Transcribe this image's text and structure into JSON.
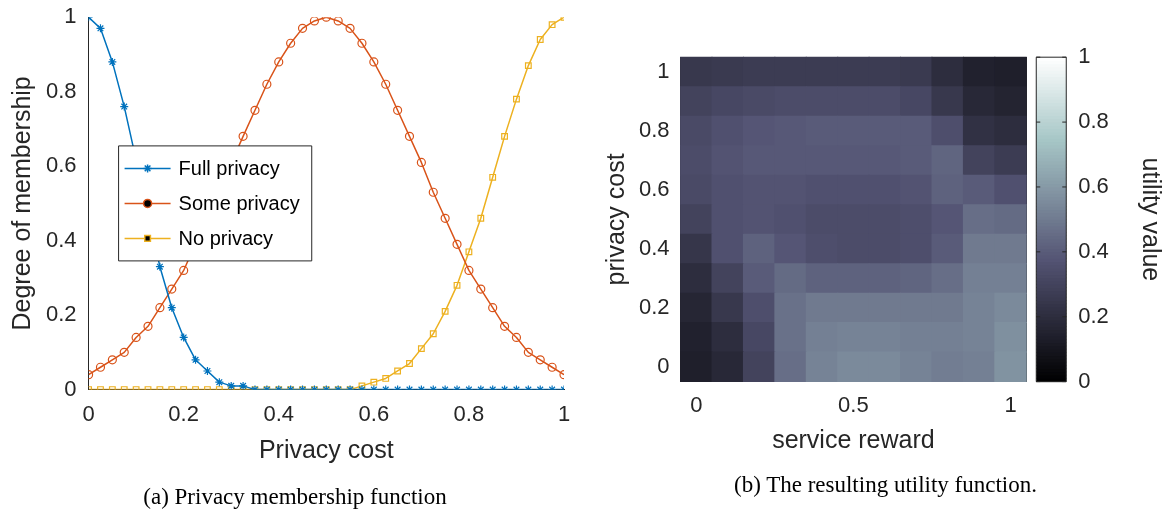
{
  "chart_data": [
    {
      "type": "line",
      "xlabel": "Privacy cost",
      "ylabel": "Degree of membership",
      "x": [
        0,
        0.025,
        0.05,
        0.075,
        0.1,
        0.125,
        0.15,
        0.175,
        0.2,
        0.225,
        0.25,
        0.275,
        0.3,
        0.325,
        0.35,
        0.375,
        0.4,
        0.425,
        0.45,
        0.475,
        0.5,
        0.525,
        0.55,
        0.575,
        0.6,
        0.625,
        0.65,
        0.675,
        0.7,
        0.725,
        0.75,
        0.775,
        0.8,
        0.825,
        0.85,
        0.875,
        0.9,
        0.925,
        0.95,
        0.975,
        1
      ],
      "series": [
        {
          "name": "Full privacy",
          "color": "#0072bd",
          "marker": "cross",
          "values": [
            1,
            0.97,
            0.88,
            0.76,
            null,
            null,
            0.33,
            0.22,
            0.14,
            0.08,
            0.05,
            0.02,
            0.01,
            0.01,
            0,
            0,
            0,
            0,
            0,
            0,
            0,
            0,
            0,
            0,
            0,
            0,
            0,
            0,
            0,
            0,
            0,
            0,
            0,
            0,
            0,
            0,
            0,
            0,
            0,
            0,
            0
          ]
        },
        {
          "name": "Some privacy",
          "color": "#d95319",
          "marker": "circle",
          "values": [
            0.04,
            0.06,
            0.08,
            0.1,
            0.14,
            0.17,
            0.22,
            0.27,
            0.32,
            null,
            null,
            null,
            null,
            0.68,
            0.75,
            0.82,
            0.88,
            0.93,
            0.97,
            0.99,
            1,
            0.99,
            0.97,
            0.93,
            0.88,
            0.82,
            0.75,
            0.68,
            0.61,
            0.53,
            0.46,
            0.39,
            0.32,
            0.27,
            0.22,
            0.17,
            0.14,
            0.1,
            0.08,
            0.06,
            0.04
          ]
        },
        {
          "name": "No privacy",
          "color": "#edb120",
          "marker": "square",
          "values": [
            0,
            0,
            0,
            0,
            0,
            0,
            0,
            0,
            0,
            0,
            0,
            0,
            0,
            0,
            0,
            0,
            0,
            0,
            0,
            0,
            0,
            0,
            0,
            0.01,
            0.02,
            0.03,
            0.05,
            0.07,
            0.11,
            0.15,
            0.21,
            0.28,
            0.37,
            0.46,
            0.57,
            0.68,
            0.78,
            0.87,
            0.94,
            0.98,
            1
          ]
        }
      ],
      "xlim": [
        0,
        1
      ],
      "xticks": [
        0,
        0.2,
        0.4,
        0.6,
        0.8,
        1
      ],
      "ylim": [
        0,
        1
      ],
      "yticks": [
        0,
        0.2,
        0.4,
        0.6,
        0.8,
        1
      ],
      "line_style": "solid",
      "grid": false,
      "legend": "center left",
      "annotations": [
        "(a) Privacy membership function"
      ]
    },
    {
      "type": "heatmap",
      "xlabel": "service reward",
      "ylabel": "privacy cost",
      "clabel": "utility value",
      "categories": [
        "0",
        null,
        null,
        null,
        null,
        "0.5",
        null,
        null,
        null,
        null,
        "1"
      ],
      "y_categories": [
        "1",
        null,
        "0.8",
        null,
        "0.6",
        null,
        "0.4",
        null,
        "0.2",
        null,
        "0"
      ],
      "cells": [
        [
          0.25,
          0.26,
          0.27,
          0.27,
          0.27,
          0.27,
          0.27,
          0.26,
          0.2,
          0.15,
          0.14
        ],
        [
          0.3,
          0.32,
          0.33,
          0.34,
          0.34,
          0.34,
          0.34,
          0.32,
          0.25,
          0.18,
          0.16
        ],
        [
          0.33,
          0.36,
          0.38,
          0.39,
          0.4,
          0.4,
          0.4,
          0.4,
          0.35,
          0.22,
          0.2
        ],
        [
          0.34,
          0.37,
          0.39,
          0.39,
          0.39,
          0.39,
          0.39,
          0.4,
          0.43,
          0.3,
          0.27
        ],
        [
          0.33,
          0.36,
          0.37,
          0.37,
          0.36,
          0.36,
          0.36,
          0.37,
          0.42,
          0.4,
          0.36
        ],
        [
          0.3,
          0.36,
          0.37,
          0.36,
          0.34,
          0.34,
          0.34,
          0.35,
          0.38,
          0.46,
          0.45
        ],
        [
          0.24,
          0.36,
          0.42,
          0.38,
          0.35,
          0.34,
          0.34,
          0.35,
          0.4,
          0.5,
          0.5
        ],
        [
          0.2,
          0.3,
          0.4,
          0.45,
          0.42,
          0.42,
          0.42,
          0.43,
          0.46,
          0.52,
          0.52
        ],
        [
          0.17,
          0.25,
          0.35,
          0.47,
          0.5,
          0.5,
          0.5,
          0.5,
          0.5,
          0.53,
          0.55
        ],
        [
          0.15,
          0.2,
          0.32,
          0.47,
          0.52,
          0.53,
          0.53,
          0.52,
          0.52,
          0.53,
          0.57
        ],
        [
          0.14,
          0.18,
          0.3,
          0.46,
          0.53,
          0.55,
          0.55,
          0.53,
          0.51,
          0.52,
          0.58
        ]
      ],
      "clim": [
        0,
        1
      ],
      "cticks": [
        0,
        0.2,
        0.4,
        0.6,
        0.8,
        1
      ],
      "annotations": [
        "(b) The resulting utility function."
      ]
    }
  ]
}
